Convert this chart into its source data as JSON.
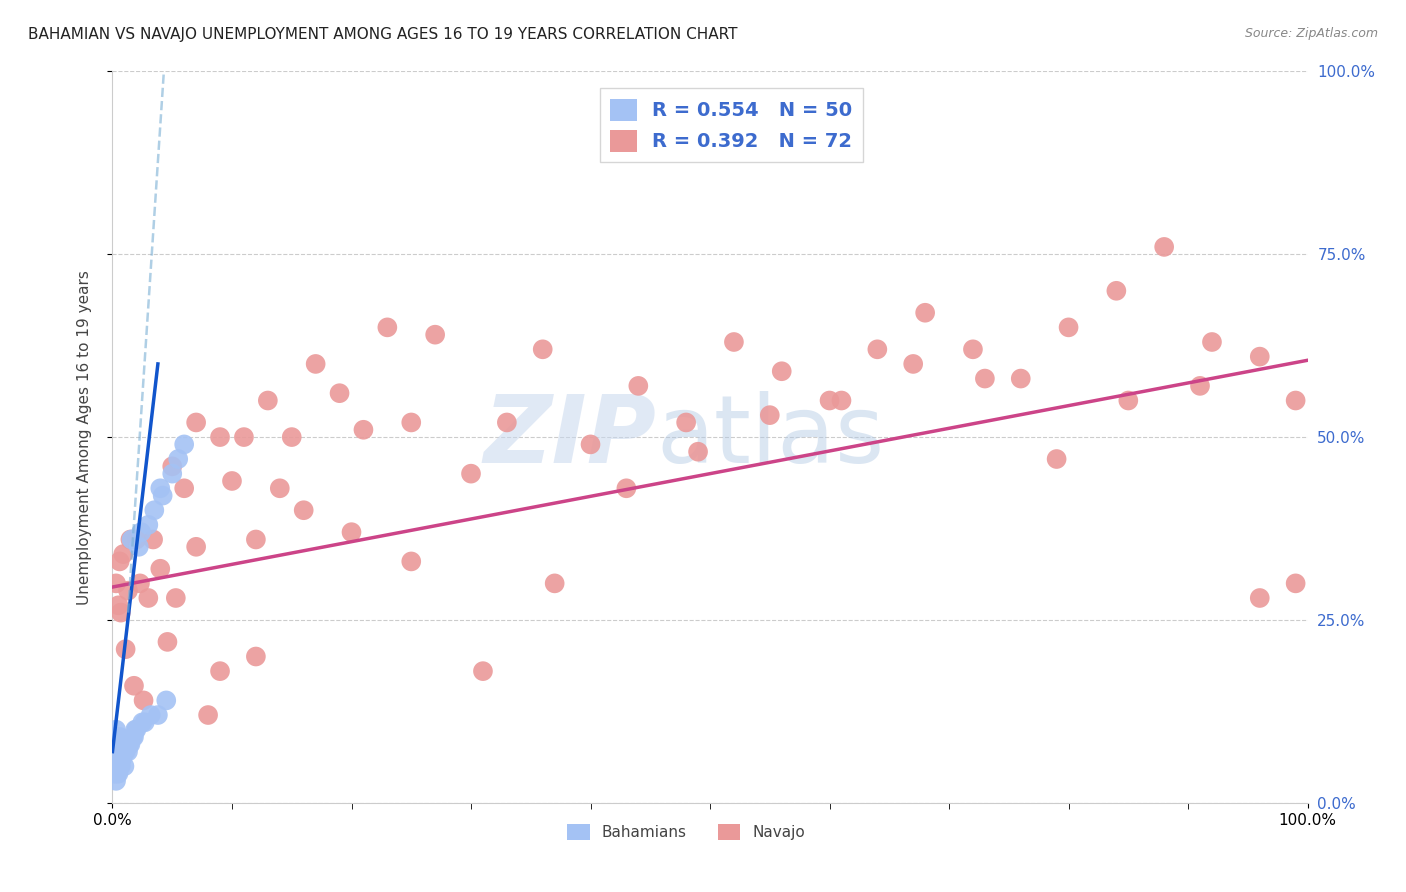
{
  "title": "BAHAMIAN VS NAVAJO UNEMPLOYMENT AMONG AGES 16 TO 19 YEARS CORRELATION CHART",
  "source": "Source: ZipAtlas.com",
  "ylabel": "Unemployment Among Ages 16 to 19 years",
  "xlim": [
    0.0,
    1.0
  ],
  "ylim": [
    0.0,
    1.0
  ],
  "ytick_positions": [
    0.0,
    0.25,
    0.5,
    0.75,
    1.0
  ],
  "bahamian_color": "#a4c2f4",
  "navajo_color": "#ea9999",
  "trend_bahamian_color": "#1155cc",
  "trend_navajo_color": "#cc4488",
  "trend_bahamian_dash_color": "#6699cc",
  "R_bahamian": "0.554",
  "N_bahamian": "50",
  "R_navajo": "0.392",
  "N_navajo": "72",
  "watermark_zip": "ZIP",
  "watermark_atlas": "atlas",
  "background_color": "#ffffff",
  "grid_color": "#cccccc",
  "right_axis_color": "#3d6bce",
  "bahamian_x": [
    0.001,
    0.001,
    0.001,
    0.002,
    0.002,
    0.002,
    0.002,
    0.003,
    0.003,
    0.003,
    0.003,
    0.004,
    0.004,
    0.004,
    0.005,
    0.005,
    0.005,
    0.006,
    0.006,
    0.006,
    0.007,
    0.007,
    0.008,
    0.009,
    0.01,
    0.01,
    0.011,
    0.012,
    0.013,
    0.014,
    0.015,
    0.016,
    0.017,
    0.018,
    0.019,
    0.02,
    0.022,
    0.024,
    0.025,
    0.027,
    0.03,
    0.032,
    0.035,
    0.038,
    0.04,
    0.042,
    0.045,
    0.05,
    0.055,
    0.06
  ],
  "bahamian_y": [
    0.04,
    0.06,
    0.08,
    0.04,
    0.06,
    0.07,
    0.09,
    0.03,
    0.05,
    0.07,
    0.1,
    0.04,
    0.06,
    0.08,
    0.04,
    0.05,
    0.07,
    0.05,
    0.07,
    0.09,
    0.05,
    0.06,
    0.06,
    0.07,
    0.05,
    0.07,
    0.07,
    0.08,
    0.07,
    0.08,
    0.08,
    0.36,
    0.09,
    0.09,
    0.1,
    0.1,
    0.35,
    0.37,
    0.11,
    0.11,
    0.38,
    0.12,
    0.4,
    0.12,
    0.43,
    0.42,
    0.14,
    0.45,
    0.47,
    0.49
  ],
  "navajo_x": [
    0.003,
    0.005,
    0.006,
    0.007,
    0.009,
    0.011,
    0.013,
    0.015,
    0.018,
    0.02,
    0.023,
    0.026,
    0.03,
    0.034,
    0.04,
    0.046,
    0.053,
    0.06,
    0.07,
    0.08,
    0.09,
    0.1,
    0.11,
    0.12,
    0.13,
    0.14,
    0.15,
    0.17,
    0.19,
    0.21,
    0.23,
    0.25,
    0.27,
    0.3,
    0.33,
    0.36,
    0.4,
    0.44,
    0.48,
    0.52,
    0.56,
    0.6,
    0.64,
    0.68,
    0.72,
    0.76,
    0.8,
    0.84,
    0.88,
    0.92,
    0.96,
    0.99,
    0.05,
    0.07,
    0.09,
    0.12,
    0.16,
    0.2,
    0.25,
    0.31,
    0.37,
    0.43,
    0.49,
    0.55,
    0.61,
    0.67,
    0.73,
    0.79,
    0.85,
    0.91,
    0.96,
    0.99
  ],
  "navajo_y": [
    0.3,
    0.27,
    0.33,
    0.26,
    0.34,
    0.21,
    0.29,
    0.36,
    0.16,
    0.36,
    0.3,
    0.14,
    0.28,
    0.36,
    0.32,
    0.22,
    0.28,
    0.43,
    0.35,
    0.12,
    0.18,
    0.44,
    0.5,
    0.36,
    0.55,
    0.43,
    0.5,
    0.6,
    0.56,
    0.51,
    0.65,
    0.52,
    0.64,
    0.45,
    0.52,
    0.62,
    0.49,
    0.57,
    0.52,
    0.63,
    0.59,
    0.55,
    0.62,
    0.67,
    0.62,
    0.58,
    0.65,
    0.7,
    0.76,
    0.63,
    0.61,
    0.55,
    0.46,
    0.52,
    0.5,
    0.2,
    0.4,
    0.37,
    0.33,
    0.18,
    0.3,
    0.43,
    0.48,
    0.53,
    0.55,
    0.6,
    0.58,
    0.47,
    0.55,
    0.57,
    0.28,
    0.3
  ],
  "bah_trend_solid_x0": 0.0,
  "bah_trend_solid_y0": 0.07,
  "bah_trend_solid_x1": 0.038,
  "bah_trend_solid_y1": 0.6,
  "bah_trend_dash_x0": 0.013,
  "bah_trend_dash_y0": 0.26,
  "bah_trend_dash_x1": 0.043,
  "bah_trend_dash_y1": 1.0,
  "nav_trend_x0": 0.0,
  "nav_trend_y0": 0.295,
  "nav_trend_x1": 1.0,
  "nav_trend_y1": 0.605
}
